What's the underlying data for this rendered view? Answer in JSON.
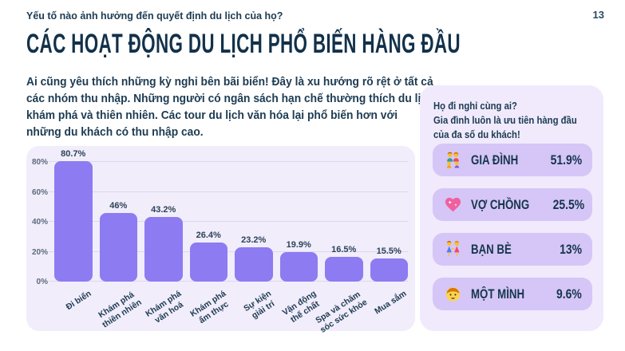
{
  "page": {
    "kicker": "Yếu tố nào ảnh hưởng đến quyết định du lịch của họ?",
    "page_number": "13",
    "title": "CÁC HOẠT ĐỘNG DU LỊCH PHỔ BIẾN HÀNG ĐẦU",
    "intro": "Ai cũng yêu thích những kỳ nghỉ bên bãi biển! Đây là xu hướng rõ rệt ở tất cả\ncác nhóm thu nhập. Những người có ngân sách hạn chế thường thích du lịch\nkhám phá và thiên nhiên. Các tour du lịch văn hóa lại phổ biến hơn với\nnhững du khách có thu nhập cao."
  },
  "colors": {
    "ink": "#1d3b52",
    "bar_purple": "#8d7bf2",
    "chart_panel_bg": "#f1edfb",
    "side_panel_bg": "#f0eafc",
    "card_bg": "#d5c6f7",
    "gridline": "#ded7ef"
  },
  "chart_data": {
    "type": "bar",
    "title": "",
    "xlabel": "",
    "ylabel": "",
    "categories": [
      "Đi biển",
      "Khám phá\nthiên nhiên",
      "Khám phá\nvăn hoá",
      "Khám phá\nẩm thực",
      "Sự kiện\ngiải trí",
      "Vận động\nthể chất",
      "Spa và chăm\nsóc sức khỏe",
      "Mua sắm"
    ],
    "values": [
      80.7,
      46,
      43.2,
      26.4,
      23.2,
      19.9,
      16.5,
      15.5
    ],
    "value_labels": [
      "80.7%",
      "46%",
      "43.2%",
      "26.4%",
      "23.2%",
      "19.9%",
      "16.5%",
      "15.5%"
    ],
    "y_ticks": [
      "80%",
      "60%",
      "40%",
      "20%",
      "0%"
    ],
    "ylim": [
      0,
      80
    ],
    "grid": true,
    "legend": false,
    "bar_color": "#8d7bf2"
  },
  "companions_panel": {
    "heading": "Họ đi nghỉ cùng ai?\nGia đình luôn là ưu tiên hàng đầu\ncủa đa số du khách!",
    "items": [
      {
        "icon": "family-icon",
        "label": "GIA ĐÌNH",
        "value": "51.9%"
      },
      {
        "icon": "sparkling-heart-icon",
        "label": "VỢ CHỒNG",
        "value": "25.5%"
      },
      {
        "icon": "friends-icon",
        "label": "BẠN BÈ",
        "value": "13%"
      },
      {
        "icon": "child-icon",
        "label": "MỘT MÌNH",
        "value": "9.6%"
      }
    ]
  }
}
